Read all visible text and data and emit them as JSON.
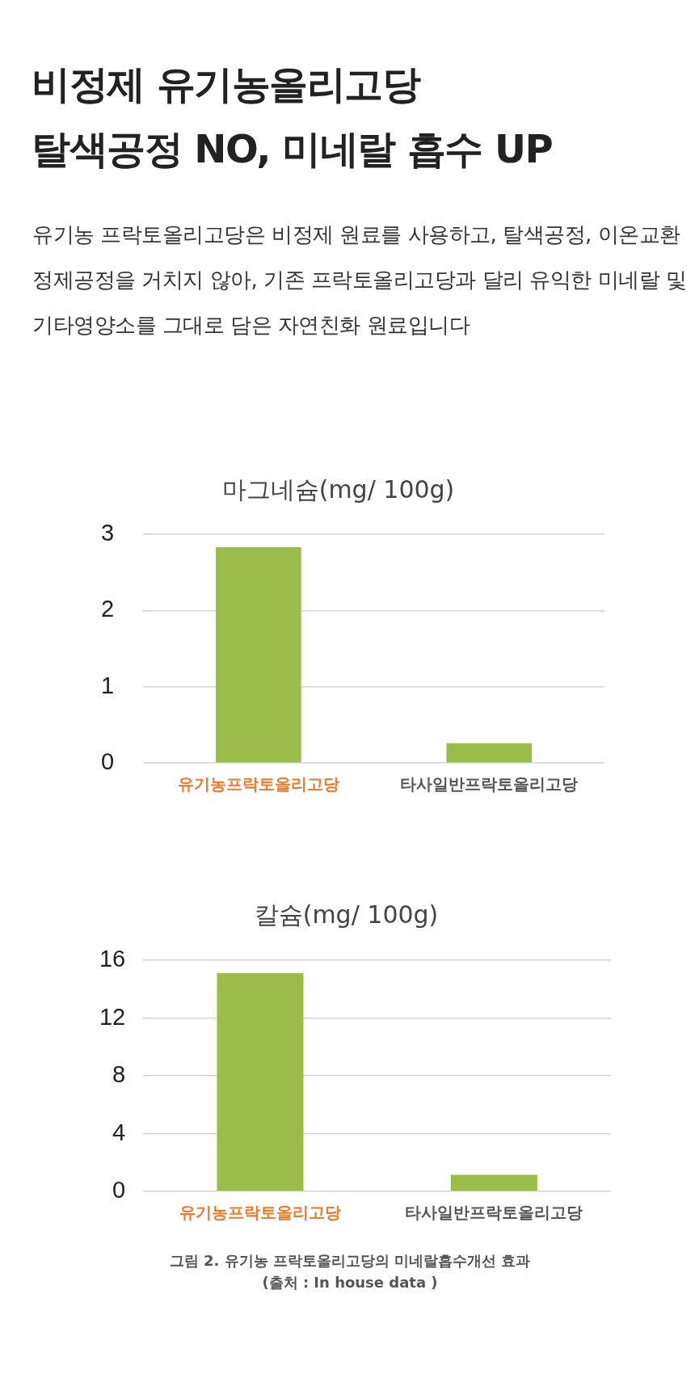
{
  "chart_data": [
    {
      "type": "other",
      "title": "비정제 유기농올리고당\n탈색공정 NO, 미네랄 흡수 UP",
      "subtitle": "유기농 프락토올리고당은 비정제 원료를 사용하고, 탈색공정, 이온교환 정제공정을 거치지 않아, 기존 프락토올리고당과 달리 유익한 미네랄 및 기타영양소를 그대로 담은 자연친화 원료입니다"
    },
    {
      "type": "bar",
      "title": "마그네슘(mg/ 100g)",
      "categories": [
        "유기농프락토올리고당",
        "타사일반프락토올리고당"
      ],
      "values": [
        2.83,
        0.26
      ],
      "color": "#9bbb4b",
      "ylim": [
        0,
        3
      ],
      "yticks": [
        0,
        1,
        2,
        3
      ],
      "grid": "y"
    },
    {
      "type": "bar",
      "title": "칼슘(mg/ 100g)",
      "categories": [
        "유기농프락토올리고당",
        "타사일반프락토올리고당"
      ],
      "values": [
        15.1,
        1.15
      ],
      "color": "#9bbb4b",
      "ylim": [
        0,
        16
      ],
      "yticks": [
        0,
        4,
        8,
        12,
        16
      ],
      "grid": "y",
      "annotations": [
        "그림 2. 유기농 프락토올리고당의 미네랄흡수개선 효과",
        "(출처 : In house data )"
      ]
    }
  ]
}
